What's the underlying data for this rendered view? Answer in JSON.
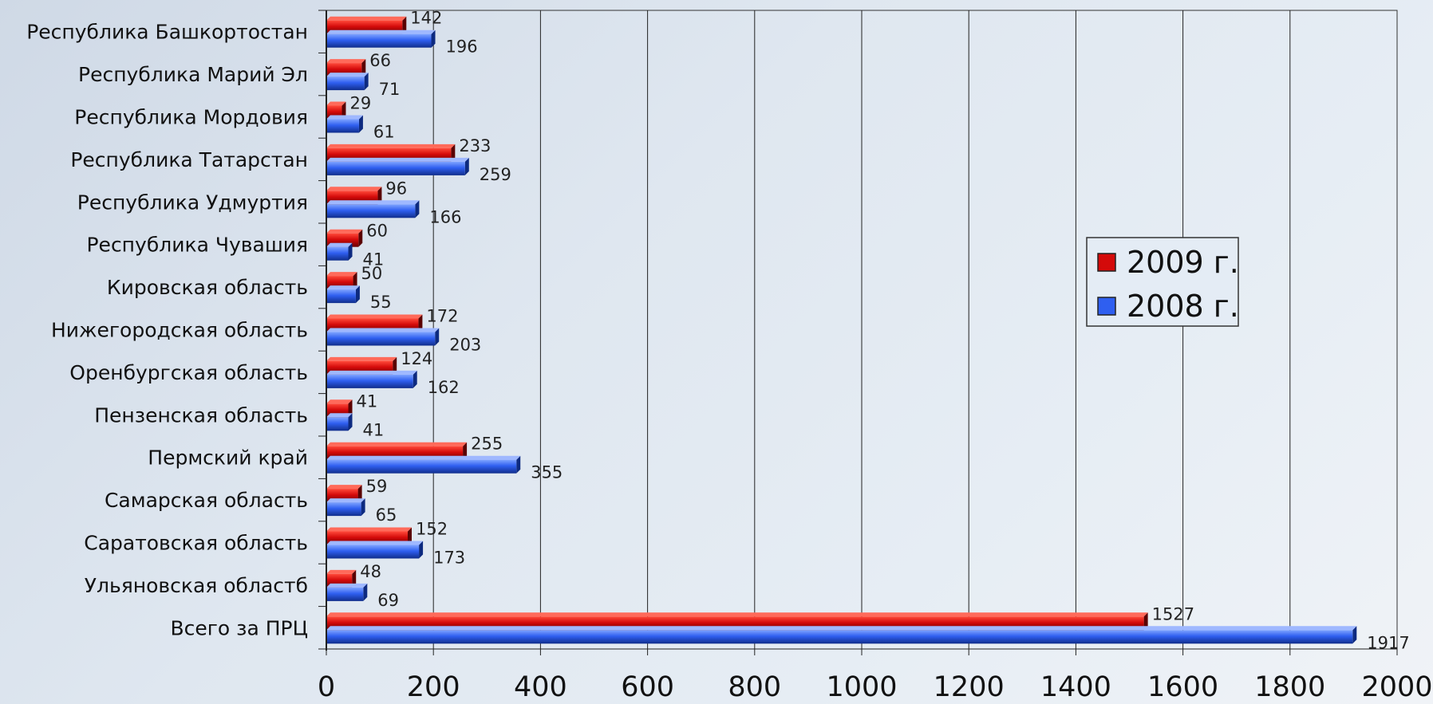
{
  "chart_data": {
    "type": "bar",
    "orientation": "horizontal",
    "categories": [
      "Республика Башкортостан",
      "Республика Марий Эл",
      "Республика Мордовия",
      "Республика Татарстан",
      "Республика Удмуртия",
      "Республика Чувашия",
      "Кировская область",
      "Нижегородская область",
      "Оренбургская область",
      "Пензенская область",
      "Пермский край",
      "Самарская область",
      "Саратовская область",
      "Ульяновская областб",
      "Всего за ПРЦ"
    ],
    "series": [
      {
        "name": "2009 г.",
        "color": "#d40a0a",
        "values": [
          142,
          66,
          29,
          233,
          96,
          60,
          50,
          172,
          124,
          41,
          255,
          59,
          152,
          48,
          1527
        ]
      },
      {
        "name": "2008 г.",
        "color": "#2f5ff0",
        "values": [
          196,
          71,
          61,
          259,
          166,
          41,
          55,
          203,
          162,
          41,
          355,
          65,
          173,
          69,
          1917
        ]
      }
    ],
    "xlim": [
      0,
      2000
    ],
    "xticks": [
      "0",
      "200",
      "400",
      "600",
      "800",
      "1000",
      "1200",
      "1400",
      "1600",
      "1800",
      "2000"
    ],
    "grid": true,
    "legend_position": "right"
  }
}
